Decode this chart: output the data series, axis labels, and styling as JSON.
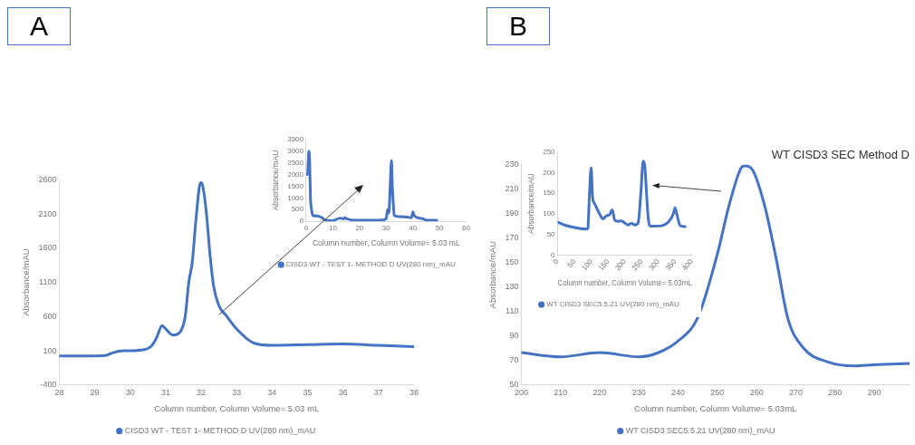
{
  "chart_data": [
    {
      "type": "line",
      "annotations": [
        "A"
      ],
      "xlabel": "Column number, Column Volume= 5.03 mL",
      "ylabel": "Absorbance/mAU",
      "xlim": [
        28,
        38
      ],
      "xticks": [
        28,
        29,
        30,
        31,
        32,
        33,
        34,
        35,
        36,
        37,
        38
      ],
      "ylim": [
        -400,
        2600
      ],
      "yticks": [
        -400,
        100,
        600,
        1100,
        1600,
        2100,
        2600
      ],
      "grid": false,
      "legend": "bottom",
      "marker": "none",
      "line_style": "solid",
      "series": [
        {
          "name": "CISD3 WT - TEST 1- METHOD D UV(280 nm)_mAU",
          "color": "#4472c4",
          "x": [
            28,
            29,
            29.3,
            29.5,
            29.8,
            30,
            30.3,
            30.6,
            30.75,
            30.9,
            31,
            31.2,
            31.4,
            31.55,
            31.65,
            31.75,
            31.85,
            31.95,
            32,
            32.05,
            32.15,
            32.25,
            32.35,
            32.5,
            32.7,
            33,
            33.5,
            34,
            35,
            36,
            37,
            38
          ],
          "values": [
            25,
            25,
            30,
            70,
            100,
            100,
            110,
            170,
            300,
            470,
            420,
            330,
            370,
            600,
            1100,
            1400,
            2000,
            2500,
            2560,
            2500,
            2100,
            1500,
            1050,
            760,
            620,
            420,
            210,
            180,
            190,
            200,
            180,
            160
          ]
        }
      ]
    },
    {
      "type": "line",
      "xlabel": "Column number, Column Volume= 5.03 mL",
      "ylabel": "Absorbance/mAU",
      "xlim": [
        0,
        60
      ],
      "xticks": [
        0,
        10,
        20,
        30,
        40,
        50,
        60
      ],
      "ylim": [
        0,
        3500
      ],
      "yticks": [
        0,
        500,
        1000,
        1500,
        2000,
        2500,
        3000,
        3500
      ],
      "grid": false,
      "legend": "bottom",
      "marker": "none",
      "line_style": "solid",
      "series": [
        {
          "name": "CISD3 WT - TEST 1- METHOD D UV(280 nm)_mAU",
          "color": "#4472c4",
          "x": [
            0,
            0.5,
            1,
            1.3,
            1.6,
            2,
            2.5,
            4,
            6,
            7,
            10,
            12,
            13,
            14,
            14.5,
            15,
            17,
            20,
            28,
            30,
            30.5,
            31,
            31.5,
            32,
            32.3,
            32.7,
            33,
            35,
            38,
            39.5,
            40,
            40.5,
            42,
            44,
            45,
            48,
            49
          ],
          "values": [
            2000,
            2000,
            3000,
            2500,
            1000,
            500,
            250,
            230,
            150,
            50,
            30,
            120,
            130,
            100,
            150,
            120,
            60,
            50,
            50,
            100,
            500,
            350,
            1500,
            2600,
            1500,
            700,
            250,
            200,
            180,
            150,
            400,
            250,
            150,
            100,
            50,
            50,
            40
          ]
        }
      ]
    },
    {
      "type": "line",
      "title": "WT CISD3 SEC Method D",
      "annotations": [
        "B"
      ],
      "xlabel": "Column number, Column Volume= 5.03mL",
      "ylabel": "Absorbance/mAU",
      "xlim": [
        200,
        299
      ],
      "xticks": [
        200,
        210,
        220,
        230,
        240,
        250,
        260,
        270,
        280,
        290
      ],
      "ylim": [
        50,
        230
      ],
      "yticks": [
        50,
        70,
        90,
        110,
        130,
        150,
        170,
        190,
        210,
        230
      ],
      "grid": false,
      "legend": "bottom",
      "marker": "none",
      "line_style": "solid",
      "series": [
        {
          "name": "WT CISD3 SEC5.5.21 UV(280 nm)_mAU",
          "color": "#4472c4",
          "x": [
            200,
            210,
            220,
            230,
            235,
            240,
            245,
            250,
            253,
            256,
            257,
            259,
            262,
            265,
            268,
            272,
            278,
            285,
            290,
            299
          ],
          "values": [
            76.5,
            73,
            76.5,
            73,
            76.5,
            86,
            105,
            157,
            197,
            227,
            229,
            225.5,
            197,
            153,
            104,
            80,
            69,
            65.5,
            66.5,
            67.7
          ]
        }
      ]
    },
    {
      "type": "line",
      "xlabel": "Column number, Column Volume= 5.03mL",
      "ylabel": "Absorbance/mAU",
      "xlim": [
        0,
        400
      ],
      "xticks": [
        0,
        50,
        100,
        150,
        200,
        250,
        300,
        350,
        400
      ],
      "ylim": [
        0,
        250
      ],
      "yticks": [
        0,
        50,
        100,
        150,
        200,
        250
      ],
      "grid": false,
      "legend": "bottom",
      "marker": "none",
      "line_style": "solid",
      "series": [
        {
          "name": "WT CISD3 SEC5.5.21 UV(280 nm)_mAU",
          "color": "#4472c4",
          "x": [
            0,
            20,
            50,
            85,
            90,
            95,
            100,
            104,
            110,
            125,
            135,
            145,
            155,
            163,
            170,
            180,
            190,
            200,
            210,
            220,
            230,
            240,
            248,
            255,
            260,
            265,
            270,
            275,
            290,
            310,
            330,
            345,
            350,
            355,
            365,
            380
          ],
          "values": [
            80,
            73,
            67,
            63,
            65,
            150,
            212,
            140,
            125,
            100,
            88,
            95,
            98,
            110,
            85,
            82,
            83,
            78,
            73,
            77,
            73,
            78,
            150,
            228,
            215,
            150,
            90,
            70,
            70,
            71,
            80,
            100,
            115,
            100,
            72,
            69
          ]
        }
      ]
    }
  ]
}
